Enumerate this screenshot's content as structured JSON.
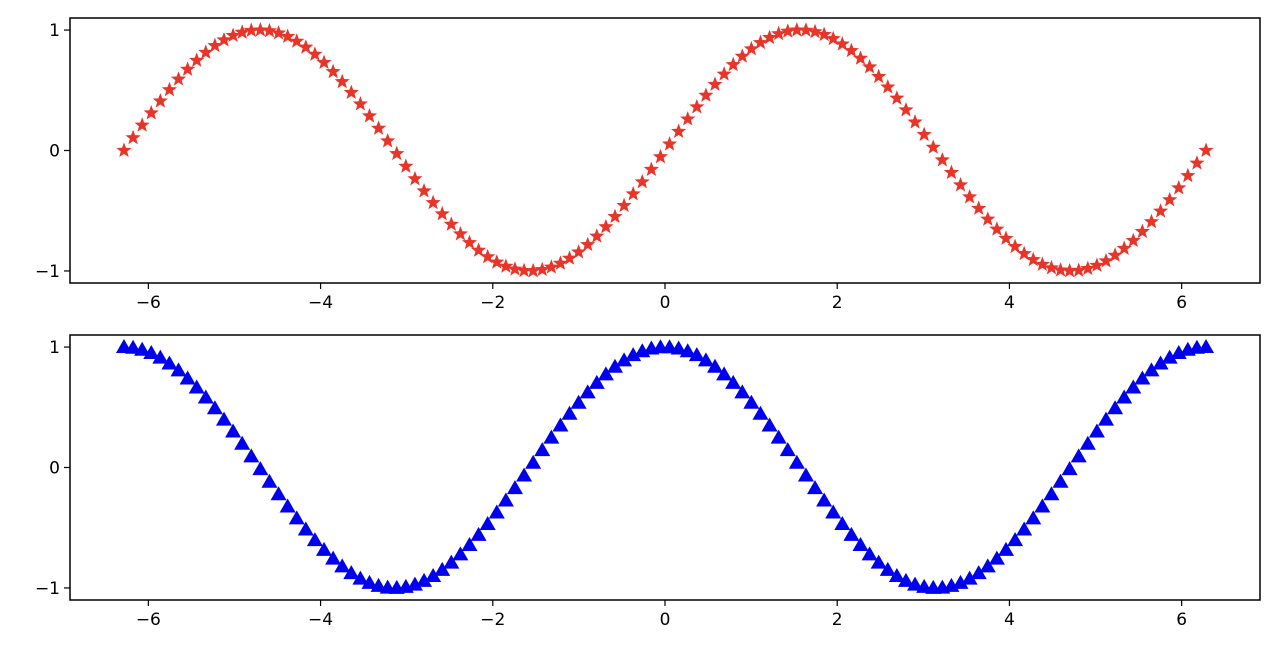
{
  "chart_data": [
    {
      "type": "scatter",
      "function": "sin",
      "x_start": -6.283185,
      "x_end": 6.283185,
      "n_points": 120,
      "marker": "star",
      "color": "#e8352a",
      "xlim": [
        -6.91,
        6.91
      ],
      "ylim": [
        -1.1,
        1.1
      ],
      "xticks": [
        -6,
        -4,
        -2,
        0,
        2,
        4,
        6
      ],
      "xtick_labels": [
        "−6",
        "−4",
        "−2",
        "0",
        "2",
        "4",
        "6"
      ],
      "yticks": [
        -1,
        0,
        1
      ],
      "ytick_labels": [
        "−1",
        "0",
        "1"
      ],
      "grid": false
    },
    {
      "type": "scatter",
      "function": "cos",
      "x_start": -6.283185,
      "x_end": 6.283185,
      "n_points": 120,
      "marker": "triangle-up",
      "color": "#0000ee",
      "xlim": [
        -6.91,
        6.91
      ],
      "ylim": [
        -1.1,
        1.1
      ],
      "xticks": [
        -6,
        -4,
        -2,
        0,
        2,
        4,
        6
      ],
      "xtick_labels": [
        "−6",
        "−4",
        "−2",
        "0",
        "2",
        "4",
        "6"
      ],
      "yticks": [
        -1,
        0,
        1
      ],
      "ytick_labels": [
        "−1",
        "0",
        "1"
      ],
      "grid": false
    }
  ]
}
